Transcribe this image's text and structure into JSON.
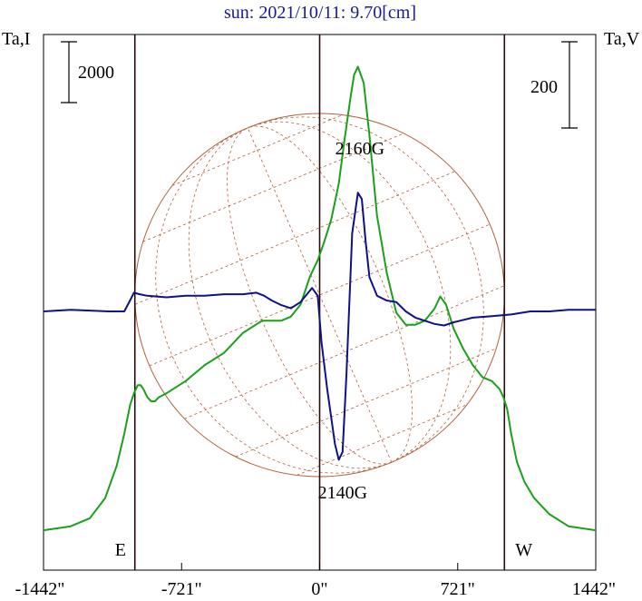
{
  "chart_data": {
    "type": "line",
    "title": "sun: 2021/10/11: 9.70[cm]",
    "left_axis_label": "Ta,I",
    "right_axis_label": "Ta,V",
    "left_scale_bar": "2000",
    "right_scale_bar": "200",
    "xlim": [
      -1442,
      1442
    ],
    "x_ticks": [
      {
        "value": -1442,
        "label": "-1442\""
      },
      {
        "value": -721,
        "label": "-721\""
      },
      {
        "value": 0,
        "label": "0\""
      },
      {
        "value": 721,
        "label": "721\""
      },
      {
        "value": 1442,
        "label": "1442\""
      }
    ],
    "limb_markers": [
      {
        "value": -965,
        "label": "E"
      },
      {
        "value": 965,
        "label": "W"
      }
    ],
    "annotations": [
      {
        "text": "2160G",
        "x": 210,
        "y": 0.86
      },
      {
        "text": "2140G",
        "x": 120,
        "y": 0.03
      }
    ],
    "grid": false,
    "solar_disk": {
      "shown": true,
      "radius_arcsec": 965,
      "color": "#b0603a"
    },
    "series": [
      {
        "name": "Ta,I",
        "color": "#1aa01a",
        "x": [
          -1442,
          -1300,
          -1200,
          -1120,
          -1060,
          -1020,
          -990,
          -970,
          -950,
          -935,
          -920,
          -900,
          -880,
          -860,
          -840,
          -800,
          -700,
          -600,
          -500,
          -400,
          -300,
          -250,
          -200,
          -150,
          -100,
          -50,
          -10,
          20,
          60,
          100,
          130,
          160,
          180,
          200,
          230,
          260,
          300,
          350,
          400,
          450,
          500,
          550,
          600,
          630,
          660,
          700,
          750,
          800,
          850,
          900,
          940,
          960,
          980,
          1000,
          1030,
          1070,
          1120,
          1200,
          1300,
          1442
        ],
        "y": [
          0.02,
          0.03,
          0.05,
          0.1,
          0.18,
          0.26,
          0.33,
          0.36,
          0.38,
          0.38,
          0.37,
          0.35,
          0.34,
          0.34,
          0.35,
          0.36,
          0.39,
          0.43,
          0.46,
          0.51,
          0.54,
          0.54,
          0.54,
          0.55,
          0.58,
          0.65,
          0.69,
          0.73,
          0.79,
          0.88,
          0.99,
          1.09,
          1.15,
          1.17,
          1.13,
          1.0,
          0.8,
          0.66,
          0.56,
          0.53,
          0.53,
          0.54,
          0.57,
          0.6,
          0.58,
          0.52,
          0.47,
          0.43,
          0.4,
          0.39,
          0.37,
          0.35,
          0.32,
          0.26,
          0.19,
          0.14,
          0.1,
          0.06,
          0.03,
          0.02
        ]
      },
      {
        "name": "Ta,V",
        "color": "#101088",
        "x": [
          -1442,
          -1300,
          -1100,
          -1020,
          -990,
          -970,
          -940,
          -900,
          -800,
          -700,
          -600,
          -500,
          -400,
          -330,
          -290,
          -250,
          -200,
          -150,
          -100,
          -40,
          -10,
          10,
          40,
          80,
          100,
          120,
          140,
          170,
          200,
          220,
          240,
          260,
          300,
          350,
          400,
          450,
          500,
          550,
          600,
          650,
          700,
          800,
          900,
          1000,
          1100,
          1200,
          1300,
          1442
        ],
        "y": [
          0.0,
          0.01,
          0.0,
          0.0,
          0.07,
          0.12,
          0.11,
          0.1,
          0.09,
          0.1,
          0.1,
          0.11,
          0.11,
          0.12,
          0.1,
          0.07,
          0.04,
          0.02,
          0.06,
          0.15,
          0.1,
          -0.2,
          -0.5,
          -0.85,
          -0.95,
          -0.9,
          -0.4,
          0.5,
          0.76,
          0.72,
          0.45,
          0.22,
          0.1,
          0.07,
          0.06,
          0.0,
          -0.04,
          -0.06,
          -0.08,
          -0.09,
          -0.07,
          -0.04,
          -0.03,
          -0.02,
          0.0,
          0.0,
          0.01,
          0.01
        ]
      }
    ]
  }
}
